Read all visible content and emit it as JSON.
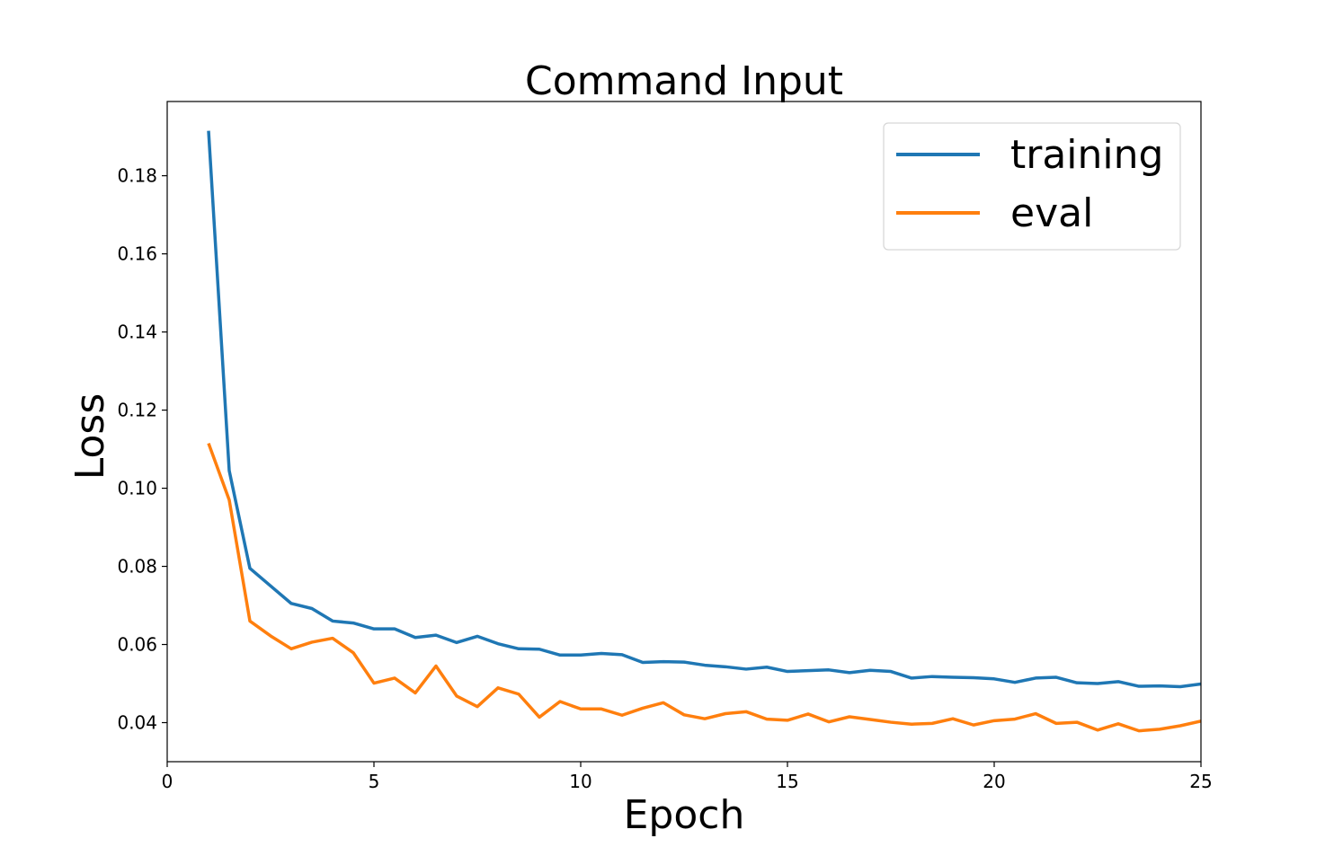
{
  "chart_data": {
    "type": "line",
    "title": "Command Input",
    "xlabel": "Epoch",
    "ylabel": "Loss",
    "xlim": [
      0,
      25
    ],
    "ylim": [
      0.03,
      0.199
    ],
    "xticks": [
      0,
      5,
      10,
      15,
      20,
      25
    ],
    "xtick_labels": [
      "0",
      "5",
      "10",
      "15",
      "20",
      "25"
    ],
    "yticks": [
      0.04,
      0.06,
      0.08,
      0.1,
      0.12,
      0.14,
      0.16,
      0.18
    ],
    "ytick_labels": [
      "0.04",
      "0.06",
      "0.08",
      "0.10",
      "0.12",
      "0.14",
      "0.16",
      "0.18"
    ],
    "grid": false,
    "legend_position": "top-right",
    "x": [
      1,
      1.5,
      2,
      2.5,
      3,
      3.5,
      4,
      4.5,
      5,
      5.5,
      6,
      6.5,
      7,
      7.5,
      8,
      8.5,
      9,
      9.5,
      10,
      10.5,
      11,
      11.5,
      12,
      12.5,
      13,
      13.5,
      14,
      14.5,
      15,
      15.5,
      16,
      16.5,
      17,
      17.5,
      18,
      18.5,
      19,
      19.5,
      20,
      20.5,
      21,
      21.5,
      22,
      22.5,
      23,
      23.5,
      24,
      24.5,
      25
    ],
    "series": [
      {
        "name": "training",
        "color": "#1f77b4",
        "values": [
          0.1915,
          0.1045,
          0.0795,
          0.075,
          0.0705,
          0.0692,
          0.066,
          0.0655,
          0.064,
          0.064,
          0.0618,
          0.0624,
          0.0605,
          0.0621,
          0.0602,
          0.0589,
          0.0588,
          0.0573,
          0.0573,
          0.0577,
          0.0574,
          0.0554,
          0.0556,
          0.0555,
          0.0547,
          0.0543,
          0.0537,
          0.0542,
          0.0531,
          0.0533,
          0.0535,
          0.0528,
          0.0534,
          0.0531,
          0.0514,
          0.0518,
          0.0516,
          0.0515,
          0.0512,
          0.0503,
          0.0514,
          0.0516,
          0.0502,
          0.05,
          0.0505,
          0.0493,
          0.0494,
          0.0492,
          0.0499
        ]
      },
      {
        "name": "eval",
        "color": "#ff7f0e",
        "values": [
          0.1115,
          0.097,
          0.066,
          0.0622,
          0.0589,
          0.0606,
          0.0616,
          0.0579,
          0.0501,
          0.0514,
          0.0476,
          0.0545,
          0.0468,
          0.0441,
          0.0489,
          0.0473,
          0.0414,
          0.0454,
          0.0435,
          0.0435,
          0.0419,
          0.0437,
          0.0451,
          0.042,
          0.041,
          0.0423,
          0.0428,
          0.0409,
          0.0406,
          0.0422,
          0.0402,
          0.0415,
          0.0408,
          0.0401,
          0.0396,
          0.0398,
          0.041,
          0.0394,
          0.0405,
          0.0409,
          0.0423,
          0.0398,
          0.0401,
          0.0381,
          0.0397,
          0.0379,
          0.0383,
          0.0392,
          0.0404
        ]
      }
    ]
  }
}
